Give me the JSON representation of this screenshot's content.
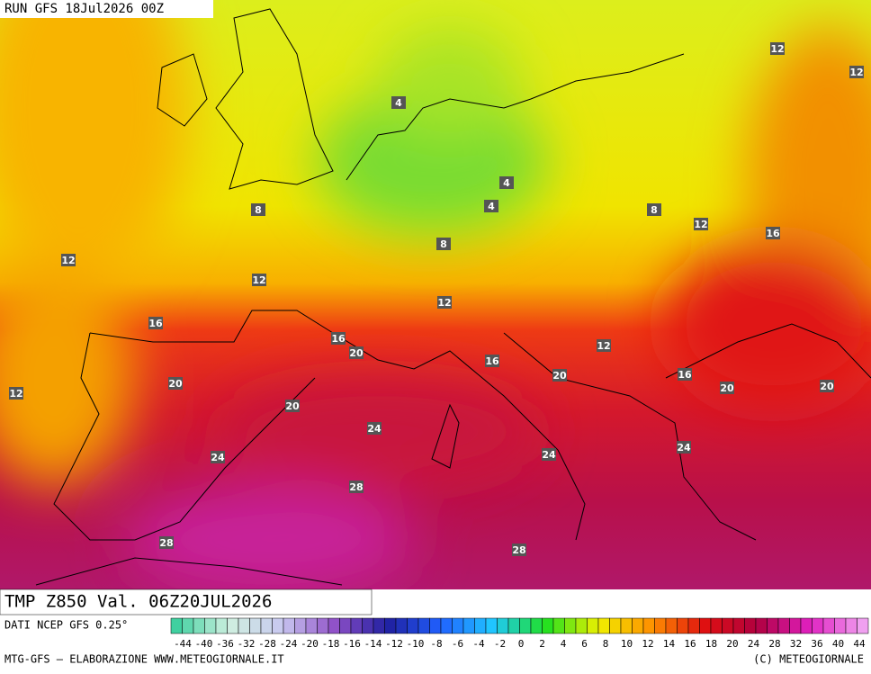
{
  "header": {
    "run": "RUN GFS 18Jul2026 00Z"
  },
  "map": {
    "contour_labels": [
      4,
      12,
      12,
      4,
      4,
      8,
      8,
      12,
      16,
      8,
      12,
      12,
      12,
      16,
      16,
      20,
      12,
      16,
      16,
      20,
      20,
      20,
      20,
      12,
      20,
      24,
      24,
      24,
      24,
      28,
      28,
      28
    ]
  },
  "footer": {
    "title": "TMP Z850 Val. 06Z20JUL2026",
    "source": "DATI NCEP GFS 0.25°",
    "credit": "MTG-GFS — ELABORAZIONE WWW.METEOGIORNALE.IT",
    "copyright": "(C) METEOGIORNALE",
    "scale_labels": [
      -44,
      -40,
      -36,
      -32,
      -28,
      -24,
      -20,
      -18,
      -16,
      -14,
      -12,
      -10,
      -8,
      -6,
      -4,
      -2,
      0,
      2,
      4,
      6,
      8,
      10,
      12,
      14,
      16,
      18,
      20,
      24,
      28,
      32,
      36,
      40,
      44
    ]
  }
}
